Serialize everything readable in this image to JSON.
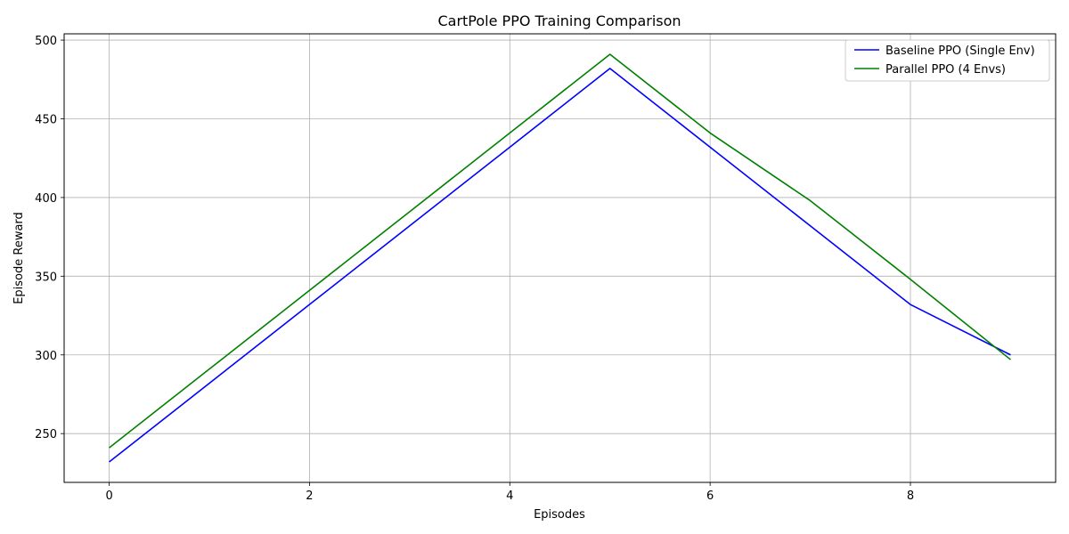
{
  "chart_data": {
    "type": "line",
    "title": "CartPole PPO Training Comparison",
    "xlabel": "Episodes",
    "ylabel": "Episode Reward",
    "x": [
      0,
      1,
      2,
      3,
      4,
      5,
      6,
      7,
      8,
      9
    ],
    "series": [
      {
        "name": "Baseline PPO (Single Env)",
        "color": "#0000ff",
        "values": [
          232,
          282,
          332,
          382,
          432,
          482,
          432,
          382,
          332,
          300
        ]
      },
      {
        "name": "Parallel PPO (4 Envs)",
        "color": "#008000",
        "values": [
          241,
          291,
          341,
          391,
          441,
          491,
          441,
          398,
          348,
          297
        ]
      }
    ],
    "xlim": [
      -0.45,
      9.45
    ],
    "ylim": [
      219,
      504
    ],
    "xticks": [
      0,
      2,
      4,
      6,
      8
    ],
    "yticks": [
      250,
      300,
      350,
      400,
      450,
      500
    ],
    "grid": true,
    "legend_position": "upper right"
  }
}
